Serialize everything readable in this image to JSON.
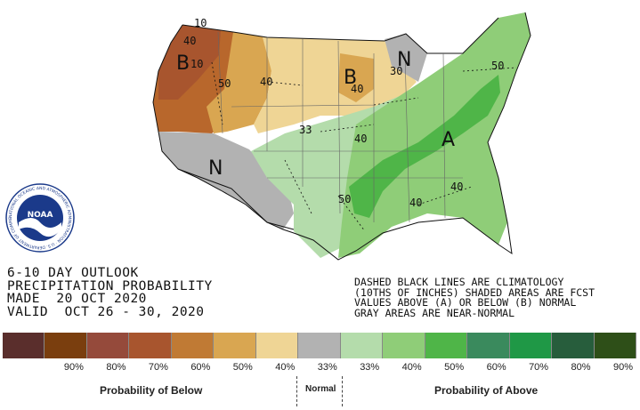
{
  "title_lines": [
    "6-10 DAY OUTLOOK",
    "PRECIPITATION PROBABILITY",
    "MADE  20 OCT 2020",
    "VALID  OCT 26 - 30, 2020"
  ],
  "notes": [
    "DASHED BLACK LINES ARE CLIMATOLOGY",
    "(10THS OF INCHES) SHADED AREAS ARE FCST",
    "VALUES ABOVE (A) OR BELOW (B) NORMAL",
    "GRAY AREAS ARE NEAR-NORMAL"
  ],
  "logo_text": "NOAA",
  "logo_ring_text": "NATIONAL OCEANIC AND ATMOSPHERIC ADMINISTRATION · U.S. DEPARTMENT OF COMMERCE",
  "legend": {
    "swatches": [
      {
        "label": "",
        "color": "#5a2e2c"
      },
      {
        "label": "90%",
        "color": "#7a3e0e"
      },
      {
        "label": "80%",
        "color": "#954a3b"
      },
      {
        "label": "70%",
        "color": "#a8552e"
      },
      {
        "label": "60%",
        "color": "#c07a34"
      },
      {
        "label": "50%",
        "color": "#d9a651"
      },
      {
        "label": "40%",
        "color": "#efd595"
      },
      {
        "label": "33%",
        "color": "#b2b2b2"
      },
      {
        "label": "33%",
        "color": "#b4dcab"
      },
      {
        "label": "40%",
        "color": "#8fcd78"
      },
      {
        "label": "50%",
        "color": "#4fb548"
      },
      {
        "label": "60%",
        "color": "#3a8a5d"
      },
      {
        "label": "70%",
        "color": "#1f9846"
      },
      {
        "label": "80%",
        "color": "#275d3c"
      },
      {
        "label": "90%",
        "color": "#2e4f18"
      }
    ],
    "below_caption": "Probability of Below",
    "normal_caption": "Normal",
    "above_caption": "Probability of Above"
  },
  "map_labels": {
    "regions": [
      "B",
      "B",
      "N",
      "N",
      "A"
    ],
    "contours": [
      "50",
      "40",
      "40",
      "30",
      "33",
      "40",
      "50",
      "40",
      "40",
      "50",
      "10",
      "40",
      "10"
    ]
  },
  "colors": {
    "ocean": "#ffffff",
    "gray_normal": "#b2b2b2",
    "dry_brown": "#b8672c",
    "dry_mid": "#d9a651",
    "dry_light": "#efd595",
    "wet_light": "#b4dcab",
    "wet_mid": "#8fcd78",
    "wet_strong": "#4fb548"
  }
}
